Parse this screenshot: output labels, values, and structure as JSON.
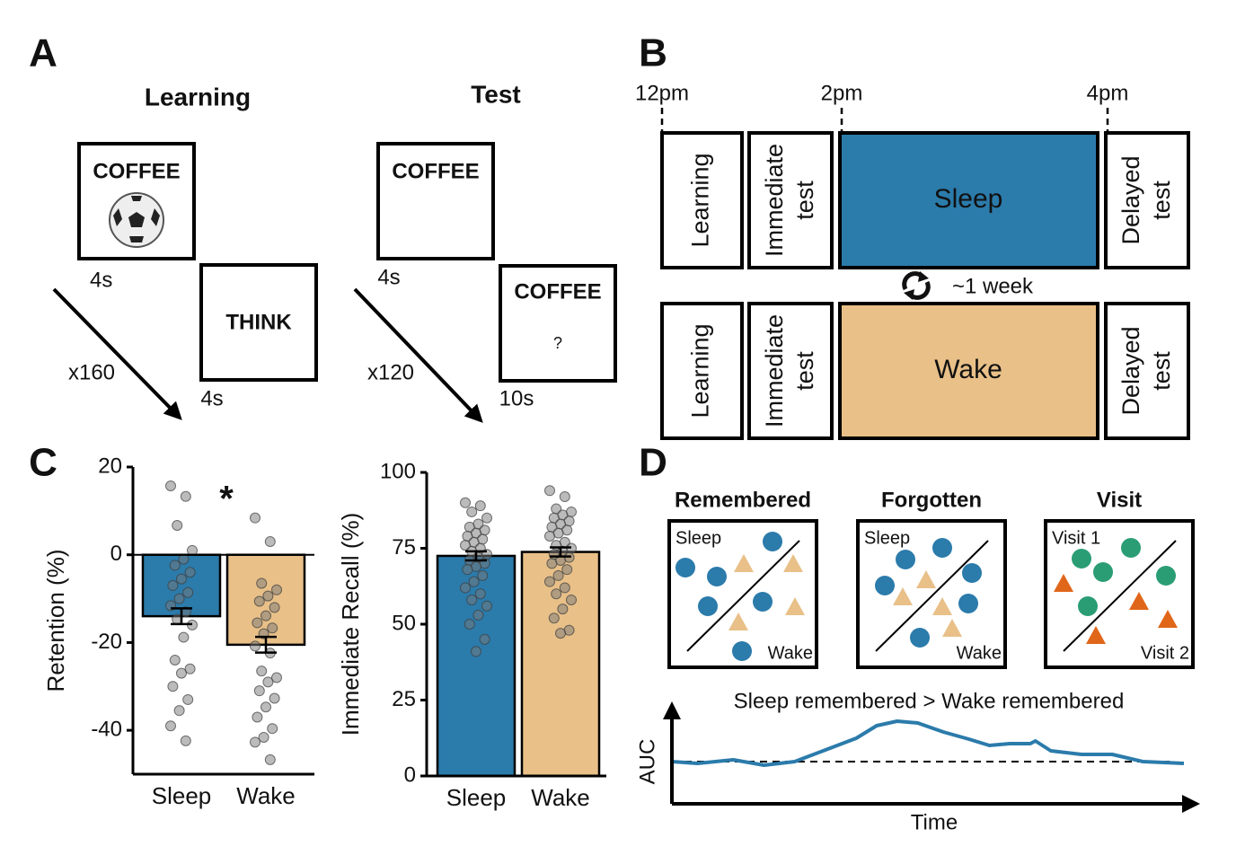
{
  "panel_a": {
    "letter": "A",
    "learning": {
      "title": "Learning",
      "cue": "COFFEE",
      "response": "THINK",
      "time_1": "4s",
      "time_2": "4s",
      "repetitions": "x160"
    },
    "test": {
      "title": "Test",
      "cue_1": "COFFEE",
      "cue_2": "COFFEE",
      "prompt": "?",
      "time_1": "4s",
      "time_2": "10s",
      "repetitions": "x120"
    }
  },
  "panel_b": {
    "letter": "B",
    "times": [
      "12pm",
      "2pm",
      "4pm"
    ],
    "rows": [
      {
        "learning": "Learning",
        "immediate": [
          "Immediate",
          "test"
        ],
        "condition": "Sleep",
        "delayed": [
          "Delayed",
          "test"
        ]
      },
      {
        "learning": "Learning",
        "immediate": [
          "Immediate",
          "test"
        ],
        "condition": "Wake",
        "delayed": [
          "Delayed",
          "test"
        ]
      }
    ],
    "gap": "~1 week"
  },
  "panel_c": {
    "letter": "C"
  },
  "panel_d": {
    "letter": "D",
    "boxes": [
      {
        "title": "Remembered",
        "top_label": "Sleep",
        "bottom_label": "Wake"
      },
      {
        "title": "Forgotten",
        "top_label": "Sleep",
        "bottom_label": "Wake"
      },
      {
        "title": "Visit",
        "top_label": "Visit 1",
        "bottom_label": "Visit 2"
      }
    ]
  },
  "chart_data": [
    {
      "type": "bar",
      "ylabel": "Retention (%)",
      "categories": [
        "Sleep",
        "Wake"
      ],
      "values": [
        -14,
        -20.5
      ],
      "errors": [
        1.8,
        1.8
      ],
      "colors": [
        "#2b7bab",
        "#e8c088"
      ],
      "points": [
        [
          15.7,
          13.3,
          6.7,
          1,
          -1,
          -2.4,
          -4,
          -5.5,
          -7,
          -8.6,
          -10,
          -11.6,
          -13,
          -14.7,
          -16,
          -18.8,
          -24,
          -26,
          -27,
          -30,
          -33,
          -35.5,
          -39,
          -42.4
        ],
        [
          8.4,
          3,
          -6.5,
          -8,
          -9.4,
          -10.6,
          -12,
          -13.9,
          -15.5,
          -16.7,
          -18,
          -20.8,
          -22.4,
          -26.5,
          -28,
          -29,
          -31,
          -32.7,
          -34.7,
          -37,
          -39.6,
          -41.6,
          -42.7,
          -46.7
        ]
      ],
      "ylim": [
        -50,
        20
      ],
      "yticks": [
        -40,
        -20,
        0,
        20
      ],
      "annotation": "*"
    },
    {
      "type": "bar",
      "ylabel": "Immediate Recall (%)",
      "categories": [
        "Sleep",
        "Wake"
      ],
      "values": [
        72.5,
        73.8
      ],
      "errors": [
        1.5,
        1.5
      ],
      "colors": [
        "#2b7bab",
        "#e8c088"
      ],
      "points": [
        [
          90,
          89,
          87,
          85,
          83,
          82,
          81,
          80,
          79,
          78,
          77,
          76,
          75,
          74,
          73,
          72,
          71,
          70,
          69,
          68,
          66,
          64,
          62,
          60,
          58,
          56,
          53,
          50,
          45,
          41
        ],
        [
          94,
          92,
          88,
          87,
          86,
          85,
          84,
          83,
          82,
          81,
          80,
          79,
          77,
          76,
          75,
          74,
          73,
          72,
          71,
          70,
          68,
          66,
          64,
          62,
          60,
          58,
          55,
          52,
          48,
          47
        ]
      ],
      "ylim": [
        0,
        100
      ],
      "yticks": [
        0,
        25,
        50,
        75,
        100
      ]
    },
    {
      "type": "line",
      "title": "Sleep remembered > Wake remembered",
      "xlabel": "Time",
      "ylabel": "AUC",
      "x": [
        0,
        5,
        12,
        18,
        24,
        30,
        36,
        40,
        44,
        48,
        53,
        58,
        62,
        66,
        70,
        71,
        74,
        80,
        86,
        92,
        100
      ],
      "values": [
        0.47,
        0.45,
        0.49,
        0.43,
        0.47,
        0.6,
        0.73,
        0.87,
        0.92,
        0.9,
        0.8,
        0.72,
        0.65,
        0.67,
        0.67,
        0.7,
        0.59,
        0.55,
        0.55,
        0.47,
        0.45
      ],
      "color": "#2b7bab",
      "baseline": 0.47,
      "xlim": [
        0,
        100
      ],
      "ylim": [
        0,
        1.1
      ]
    }
  ]
}
